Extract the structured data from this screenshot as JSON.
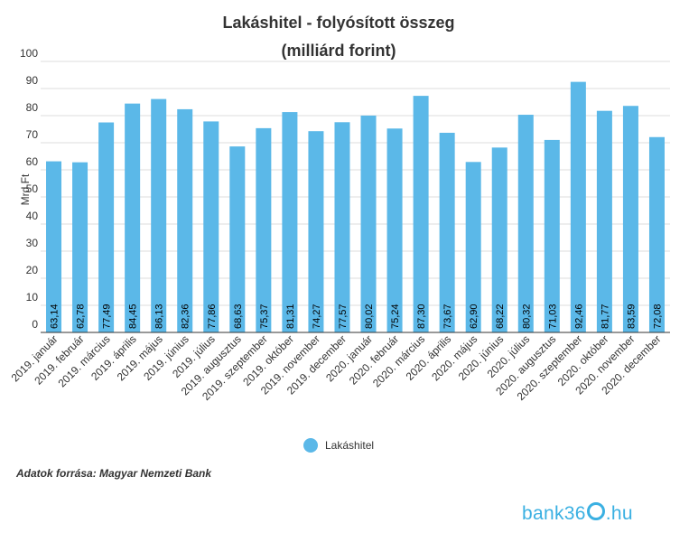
{
  "chart_data": {
    "type": "bar",
    "title": [
      "Lakáshitel - folyósított összeg",
      "(milliárd forint)"
    ],
    "ylabel": "Mrd Ft",
    "ylim": [
      0,
      100
    ],
    "yticks": [
      0,
      10,
      20,
      30,
      40,
      50,
      60,
      70,
      80,
      90,
      100
    ],
    "grid": true,
    "legend_position": "bottom",
    "categories": [
      "2019. január",
      "2019. február",
      "2019. március",
      "2019. április",
      "2019. május",
      "2019. június",
      "2019. július",
      "2019. augusztus",
      "2019. szeptember",
      "2019. október",
      "2019. november",
      "2019. december",
      "2020. január",
      "2020. február",
      "2020. március",
      "2020. április",
      "2020. május",
      "2020. június",
      "2020. július",
      "2020. augusztus",
      "2020. szeptember",
      "2020. október",
      "2020. november",
      "2020. december"
    ],
    "series": [
      {
        "name": "Lakáshitel",
        "color": "#5bb8e8",
        "values": [
          63.14,
          62.78,
          77.49,
          84.45,
          86.13,
          82.36,
          77.86,
          68.63,
          75.37,
          81.31,
          74.27,
          77.57,
          80.02,
          75.24,
          87.3,
          73.67,
          62.9,
          68.22,
          80.32,
          71.03,
          92.46,
          81.77,
          83.59,
          72.08
        ],
        "labels": [
          "63,14",
          "62,78",
          "77,49",
          "84,45",
          "86,13",
          "82,36",
          "77,86",
          "68,63",
          "75,37",
          "81,31",
          "74,27",
          "77,57",
          "80,02",
          "75,24",
          "87,30",
          "73,67",
          "62,90",
          "68,22",
          "80,32",
          "71,03",
          "92,46",
          "81,77",
          "83,59",
          "72,08"
        ]
      }
    ]
  },
  "source_text": "Adatok forrása: Magyar Nemzeti Bank",
  "logo": {
    "prefix": "bank36",
    "suffix": ".hu",
    "color": "#3ab0e2"
  },
  "colors": {
    "bar": "#5bb8e8",
    "grid": "#dddddd",
    "axis": "#333333"
  }
}
